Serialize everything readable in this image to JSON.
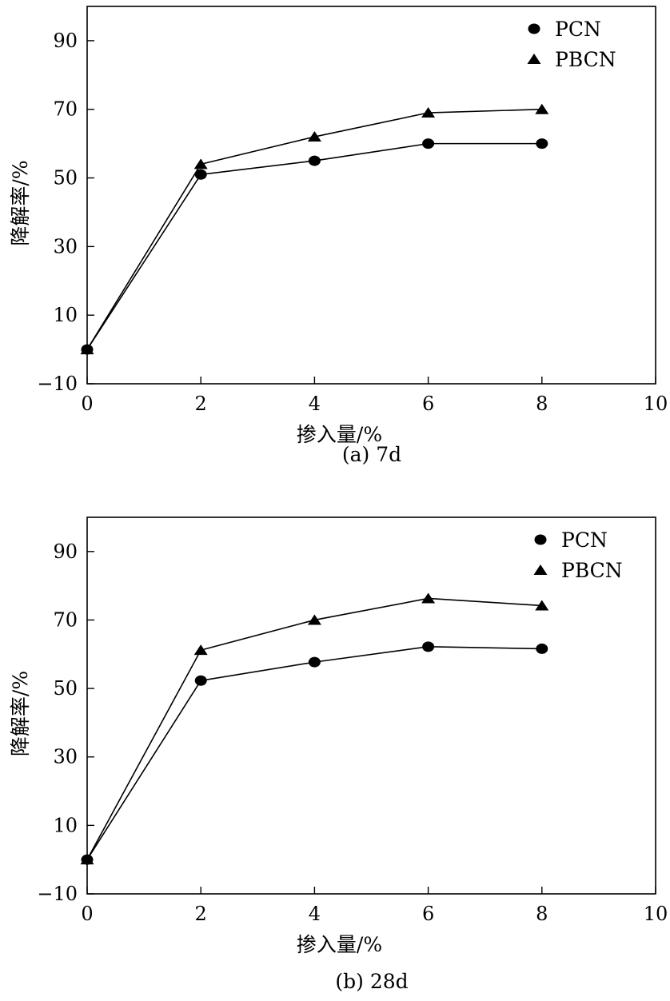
{
  "chart_data": [
    {
      "type": "line",
      "caption": "(a) 7d",
      "xlabel": "掺入量/%",
      "ylabel": "降解率/%",
      "xlim": [
        0,
        10
      ],
      "ylim": [
        -10,
        100
      ],
      "xticks": [
        0,
        2,
        4,
        6,
        8,
        10
      ],
      "yticks": [
        -10,
        10,
        30,
        50,
        70,
        90
      ],
      "x": [
        0,
        2,
        4,
        6,
        8
      ],
      "legend_position": "top-right",
      "grid": false,
      "series": [
        {
          "name": "PCN",
          "marker": "circle",
          "values": [
            0,
            51,
            55,
            60,
            60
          ]
        },
        {
          "name": "PBCN",
          "marker": "triangle",
          "values": [
            0,
            54,
            62,
            69,
            70
          ]
        }
      ]
    },
    {
      "type": "line",
      "caption": "(b) 28d",
      "xlabel": "掺入量/%",
      "ylabel": "降解率/%",
      "xlim": [
        0,
        10
      ],
      "ylim": [
        -10,
        100
      ],
      "xticks": [
        0,
        2,
        4,
        6,
        8,
        10
      ],
      "yticks": [
        -10,
        10,
        30,
        50,
        70,
        90
      ],
      "x": [
        0,
        2,
        4,
        6,
        8
      ],
      "legend_position": "top-right",
      "grid": false,
      "series": [
        {
          "name": "PCN",
          "marker": "circle",
          "values": [
            0,
            52.3,
            57.7,
            62.2,
            61.6
          ]
        },
        {
          "name": "PBCN",
          "marker": "triangle",
          "values": [
            0,
            61.2,
            70,
            76.3,
            74.2
          ]
        }
      ]
    }
  ]
}
